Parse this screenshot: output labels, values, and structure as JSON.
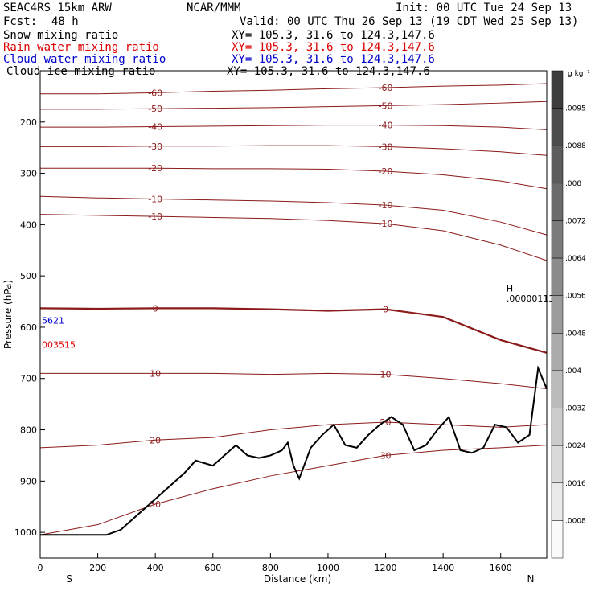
{
  "header": {
    "title": "SEAC4RS 15km ARW",
    "center": "NCAR/MMM",
    "init": "Init: 00 UTC Tue 24 Sep 13",
    "fcst_label": "Fcst:",
    "fcst_value": "48 h",
    "valid": "Valid: 00 UTC Thu 26 Sep 13 (19 CDT Wed 25 Sep 13)",
    "fields": [
      {
        "name": "Snow mixing ratio",
        "xy": "XY= 105.3, 31.6 to 124.3,147.6",
        "color": "#000000"
      },
      {
        "name": "Rain water mixing ratio",
        "xy": "XY= 105.3, 31.6 to 124.3,147.6",
        "color": "#dd0000"
      },
      {
        "name": "Cloud water mixing ratio",
        "xy": "XY= 105.3, 31.6 to 124.3,147.6",
        "color": "#0000cc"
      },
      {
        "name": "Cloud ice mixing ratio",
        "xy": "XY= 105.3, 31.6 to 124.3,147.6",
        "color": "#000000"
      }
    ]
  },
  "chart_data": {
    "type": "line",
    "xlabel": "Distance (km)",
    "ylabel": "Pressure (hPa)",
    "xlim": [
      0,
      1760
    ],
    "ylim": [
      1050,
      100
    ],
    "x_ticks": [
      0,
      200,
      400,
      600,
      800,
      1000,
      1200,
      1400,
      1600
    ],
    "y_ticks": [
      200,
      300,
      400,
      500,
      600,
      700,
      800,
      900,
      1000
    ],
    "endpoints": {
      "left": "S",
      "right": "N"
    },
    "contour_color": "#8b1a1a",
    "terrain_color": "#000000",
    "terrain": {
      "x": [
        0,
        230,
        280,
        320,
        380,
        440,
        500,
        540,
        600,
        640,
        680,
        720,
        760,
        800,
        840,
        860,
        880,
        900,
        940,
        980,
        1020,
        1060,
        1100,
        1140,
        1180,
        1220,
        1260,
        1300,
        1340,
        1380,
        1420,
        1460,
        1500,
        1540,
        1580,
        1620,
        1660,
        1700,
        1730,
        1760
      ],
      "y": [
        1005,
        1005,
        995,
        975,
        945,
        915,
        885,
        860,
        870,
        850,
        830,
        850,
        855,
        850,
        840,
        825,
        870,
        895,
        835,
        810,
        790,
        830,
        835,
        810,
        790,
        775,
        790,
        840,
        830,
        800,
        775,
        840,
        845,
        835,
        790,
        795,
        825,
        810,
        680,
        720
      ]
    },
    "contours": [
      {
        "label": "-60",
        "y": [
          145,
          145,
          143,
          140,
          138,
          135,
          133,
          130,
          128,
          125
        ]
      },
      {
        "label": "-50",
        "y": [
          175,
          175,
          174,
          173,
          172,
          170,
          168,
          166,
          163,
          160
        ]
      },
      {
        "label": "-40",
        "y": [
          210,
          210,
          209,
          208,
          207,
          206,
          206,
          207,
          210,
          215
        ]
      },
      {
        "label": "-30",
        "y": [
          248,
          248,
          247,
          247,
          246,
          246,
          248,
          252,
          258,
          265
        ]
      },
      {
        "label": "-20",
        "y": [
          290,
          290,
          290,
          291,
          291,
          292,
          296,
          303,
          315,
          330
        ]
      },
      {
        "label": "-10",
        "y": [
          345,
          348,
          350,
          352,
          354,
          357,
          362,
          372,
          395,
          420
        ]
      },
      {
        "label": "-10",
        "y": [
          380,
          382,
          384,
          386,
          388,
          392,
          398,
          412,
          440,
          470
        ]
      },
      {
        "label": "0",
        "y": [
          563,
          564,
          563,
          563,
          565,
          568,
          565,
          580,
          625,
          650
        ]
      },
      {
        "label": "10",
        "y": [
          690,
          690,
          690,
          690,
          692,
          690,
          692,
          700,
          710,
          720
        ]
      },
      {
        "label": "20",
        "y": [
          835,
          830,
          820,
          815,
          800,
          790,
          785,
          790,
          795,
          790
        ]
      },
      {
        "label": "30",
        "y": [
          1005,
          985,
          945,
          915,
          890,
          870,
          850,
          840,
          835,
          830
        ]
      }
    ],
    "contour_x": [
      0,
      200,
      400,
      600,
      800,
      1000,
      1200,
      1400,
      1600,
      1760
    ],
    "annotations": [
      {
        "text": "H",
        "x": 1620,
        "y": 530
      },
      {
        "text": ".00000113",
        "x": 1620,
        "y": 550
      },
      {
        "text": "5621",
        "x": 0,
        "y": 593,
        "color": "#0000cc"
      },
      {
        "text": "003515",
        "x": 0,
        "y": 640,
        "color": "#dd0000"
      }
    ],
    "colorbar": {
      "unit": "g kg⁻¹",
      "labels": [
        ".0095",
        ".0088",
        ".008",
        ".0072",
        ".0064",
        ".0056",
        ".0048",
        ".004",
        ".0032",
        ".0024",
        ".0016",
        ".0008"
      ]
    }
  }
}
